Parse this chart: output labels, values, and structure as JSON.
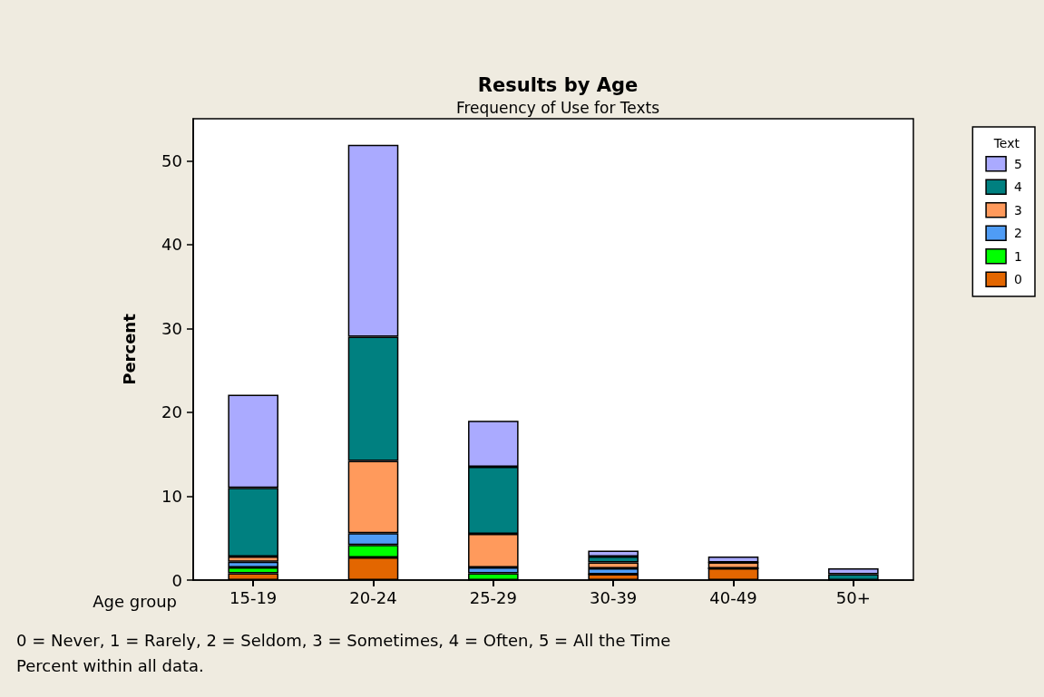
{
  "chart_data": {
    "type": "bar",
    "title": "Results by Age",
    "subtitle": "Frequency of Use for Texts",
    "xlabel": "Age group",
    "ylabel": "Percent",
    "legend_title": "Text",
    "categories": [
      "15-19",
      "20-24",
      "25-29",
      "30-39",
      "40-49",
      "50+"
    ],
    "stacked": true,
    "ylim": [
      0,
      55
    ],
    "yticks": [
      0,
      10,
      20,
      30,
      40,
      50
    ],
    "grid": false,
    "legend": "top right",
    "series": [
      {
        "name": "0",
        "color": "#e36600",
        "values": [
          0.8,
          2.7,
          0,
          0.7,
          1.4,
          0
        ]
      },
      {
        "name": "1",
        "color": "#00ff00",
        "values": [
          0.7,
          1.5,
          0.8,
          0,
          0,
          0
        ]
      },
      {
        "name": "2",
        "color": "#4f9cf5",
        "values": [
          0.7,
          1.4,
          0.7,
          0.7,
          0,
          0
        ]
      },
      {
        "name": "3",
        "color": "#ff9a5c",
        "values": [
          0.6,
          8.6,
          4.0,
          0.7,
          0.7,
          0
        ]
      },
      {
        "name": "4",
        "color": "#008080",
        "values": [
          8.2,
          14.8,
          8.0,
          0.7,
          0,
          0.7
        ]
      },
      {
        "name": "5",
        "color": "#aaaaff",
        "values": [
          11.1,
          22.9,
          5.5,
          0.7,
          0.7,
          0.7
        ]
      }
    ],
    "annotations": [
      "0 = Never, 1 = Rarely, 2 = Seldom, 3 = Sometimes, 4 = Often, 5 = All the Time",
      "Percent within all data."
    ]
  }
}
